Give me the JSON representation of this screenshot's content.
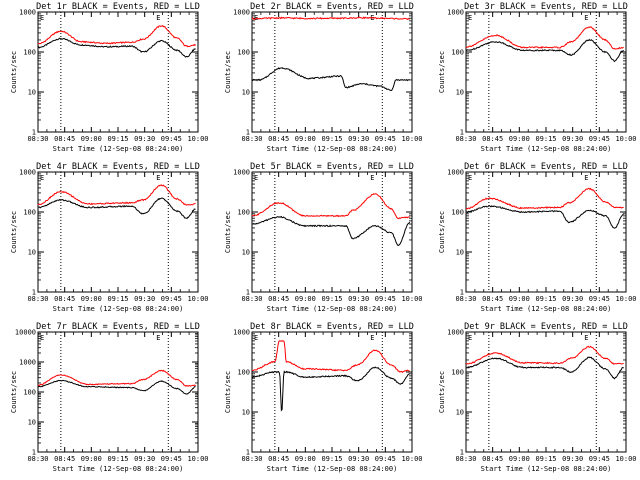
{
  "figure": {
    "time_ticks": [
      "08:30",
      "08:45",
      "09:00",
      "09:15",
      "09:30",
      "09:45",
      "10:00"
    ],
    "y_ticks": [
      "1",
      "10",
      "100",
      "1000"
    ],
    "y_ticks_large": [
      "1",
      "10",
      "100",
      "1000",
      "10000"
    ],
    "xlabel": "Start Time (12-Sep-08 08:24:00)",
    "ylabel": "Counts/sec",
    "marker_labels": [
      "E",
      "E"
    ],
    "colors": {
      "events": "#000000",
      "lld": "#ff0000"
    }
  },
  "chart_data": [
    {
      "type": "line",
      "title": "Det 1r BLACK = Events, RED = LLD",
      "x_range_min": [
        30,
        100
      ],
      "y_scale": "log",
      "ylim": [
        1,
        1000
      ],
      "vlines_min": [
        40,
        87
      ],
      "x_knots_min": [
        30,
        40,
        49,
        60,
        71,
        76,
        84,
        91,
        95,
        99
      ],
      "series": [
        {
          "color": "black",
          "values": [
            130,
            215,
            150,
            135,
            140,
            100,
            190,
            110,
            75,
            120
          ]
        },
        {
          "color": "red",
          "values": [
            160,
            330,
            180,
            165,
            175,
            210,
            450,
            220,
            140,
            150
          ]
        }
      ]
    },
    {
      "type": "line",
      "title": "Det 2r BLACK = Events, RED = LLD",
      "x_range_min": [
        30,
        100
      ],
      "y_scale": "log",
      "ylim": [
        1,
        1000
      ],
      "vlines_min": [
        40,
        87
      ],
      "x_knots_min": [
        30,
        33,
        43,
        55,
        69,
        71,
        78,
        86,
        91,
        93,
        99
      ],
      "series": [
        {
          "color": "black",
          "values": [
            20,
            20,
            40,
            22,
            25,
            13,
            16,
            14,
            11,
            20,
            20
          ]
        },
        {
          "color": "red",
          "values": [
            680,
            690,
            710,
            690,
            700,
            700,
            720,
            700,
            690,
            680,
            670
          ]
        }
      ]
    },
    {
      "type": "line",
      "title": "Det 3r BLACK = Events, RED = LLD",
      "x_range_min": [
        30,
        100
      ],
      "y_scale": "log",
      "ylim": [
        1,
        1000
      ],
      "vlines_min": [
        40,
        87
      ],
      "x_knots_min": [
        30,
        43,
        55,
        71,
        76,
        84,
        91,
        95,
        99
      ],
      "series": [
        {
          "color": "black",
          "values": [
            110,
            180,
            110,
            110,
            85,
            200,
            100,
            60,
            110
          ]
        },
        {
          "color": "red",
          "values": [
            135,
            260,
            130,
            130,
            180,
            420,
            200,
            120,
            130
          ]
        }
      ]
    },
    {
      "type": "line",
      "title": "Det 4r BLACK = Events, RED = LLD",
      "x_range_min": [
        30,
        100
      ],
      "y_scale": "log",
      "ylim": [
        1,
        1000
      ],
      "vlines_min": [
        40,
        87
      ],
      "x_knots_min": [
        30,
        40,
        52,
        71,
        76,
        84,
        91,
        95,
        99
      ],
      "series": [
        {
          "color": "black",
          "values": [
            130,
            200,
            130,
            140,
            90,
            220,
            105,
            70,
            120
          ]
        },
        {
          "color": "red",
          "values": [
            155,
            320,
            160,
            170,
            200,
            470,
            210,
            150,
            160
          ]
        }
      ]
    },
    {
      "type": "line",
      "title": "Det 5r BLACK = Events, RED = LLD",
      "x_range_min": [
        30,
        100
      ],
      "y_scale": "log",
      "ylim": [
        1,
        1000
      ],
      "vlines_min": [
        40,
        87
      ],
      "x_knots_min": [
        30,
        42,
        53,
        71,
        74,
        84,
        91,
        94,
        99
      ],
      "series": [
        {
          "color": "black",
          "values": [
            50,
            75,
            45,
            45,
            22,
            45,
            30,
            15,
            55
          ]
        },
        {
          "color": "red",
          "values": [
            80,
            170,
            80,
            80,
            110,
            280,
            120,
            70,
            75
          ]
        }
      ]
    },
    {
      "type": "line",
      "title": "Det 6r BLACK = Events, RED = LLD",
      "x_range_min": [
        30,
        100
      ],
      "y_scale": "log",
      "ylim": [
        1,
        1000
      ],
      "vlines_min": [
        40,
        87
      ],
      "x_knots_min": [
        30,
        40,
        55,
        71,
        75,
        84,
        91,
        95,
        99
      ],
      "series": [
        {
          "color": "black",
          "values": [
            100,
            140,
            100,
            105,
            55,
            110,
            80,
            40,
            90
          ]
        },
        {
          "color": "red",
          "values": [
            120,
            220,
            125,
            130,
            170,
            380,
            180,
            130,
            130
          ]
        }
      ]
    },
    {
      "type": "line",
      "title": "Det 7r BLACK = Events, RED = LLD",
      "x_range_min": [
        30,
        100
      ],
      "y_scale": "log",
      "ylim": [
        1,
        10000
      ],
      "vlines_min": [
        40,
        87
      ],
      "x_knots_min": [
        30,
        40,
        52,
        71,
        76,
        84,
        91,
        95,
        99
      ],
      "series": [
        {
          "color": "black",
          "values": [
            150,
            240,
            150,
            140,
            110,
            230,
            130,
            85,
            150
          ]
        },
        {
          "color": "red",
          "values": [
            170,
            370,
            180,
            190,
            260,
            520,
            260,
            160,
            165
          ]
        }
      ]
    },
    {
      "type": "line",
      "title": "Det 8r BLACK = Events, RED = LLD",
      "x_range_min": [
        30,
        100
      ],
      "y_scale": "log",
      "ylim": [
        1,
        1000
      ],
      "vlines_min": [
        40,
        87
      ],
      "x_knots_min": [
        30,
        40,
        42,
        43,
        44,
        45,
        53,
        71,
        76,
        84,
        91,
        95,
        99
      ],
      "series": [
        {
          "color": "black",
          "values": [
            75,
            100,
            100,
            10,
            100,
            100,
            75,
            80,
            60,
            130,
            70,
            50,
            90
          ]
        },
        {
          "color": "red",
          "values": [
            110,
            180,
            600,
            600,
            600,
            180,
            120,
            110,
            150,
            350,
            150,
            100,
            110
          ]
        }
      ]
    },
    {
      "type": "line",
      "title": "Det 9r BLACK = Events, RED = LLD",
      "x_range_min": [
        30,
        100
      ],
      "y_scale": "log",
      "ylim": [
        1,
        1000
      ],
      "vlines_min": [
        40,
        87
      ],
      "x_knots_min": [
        30,
        43,
        55,
        71,
        76,
        84,
        91,
        95,
        99
      ],
      "series": [
        {
          "color": "black",
          "values": [
            130,
            220,
            130,
            130,
            100,
            230,
            120,
            70,
            130
          ]
        },
        {
          "color": "red",
          "values": [
            160,
            300,
            170,
            165,
            220,
            430,
            220,
            160,
            160
          ]
        }
      ]
    }
  ]
}
